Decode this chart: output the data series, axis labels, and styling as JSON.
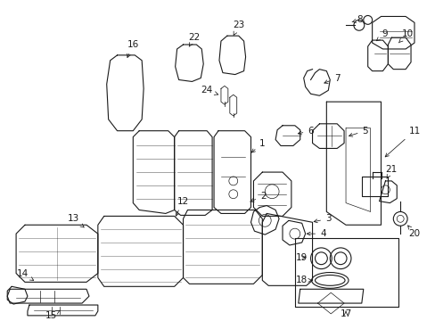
{
  "bg_color": "#ffffff",
  "line_color": "#1a1a1a",
  "figsize": [
    4.89,
    3.6
  ],
  "dpi": 100,
  "label_fs": 7.5,
  "lw": 0.8
}
